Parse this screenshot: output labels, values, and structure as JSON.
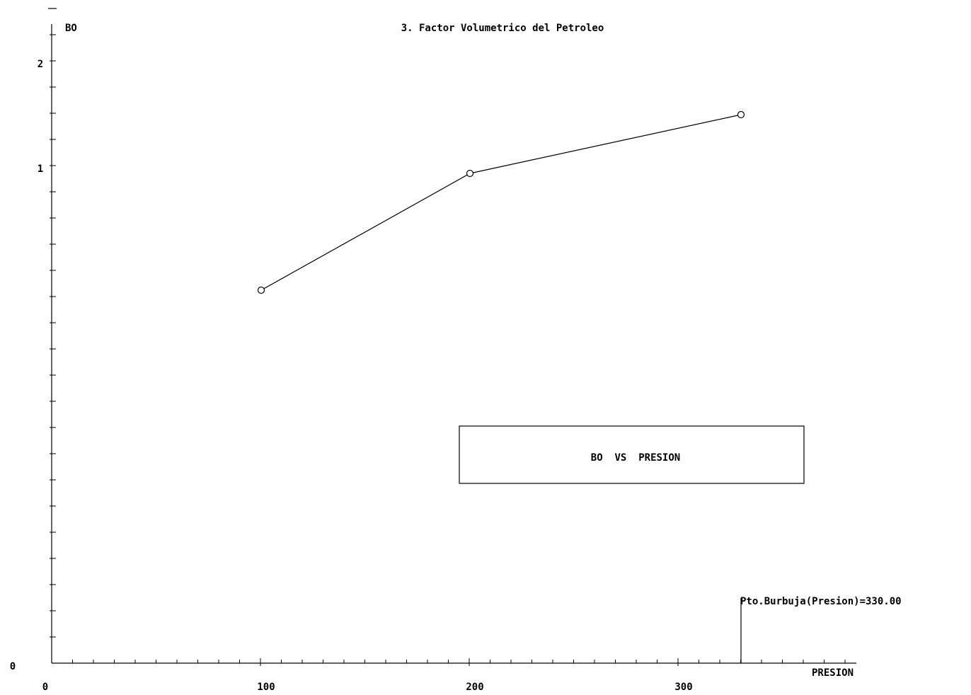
{
  "chart_data": {
    "type": "line",
    "title": "3. Factor Volumetrico del Petroleo",
    "xlabel": "PRESION",
    "ylabel": "BO",
    "xlim": [
      0,
      385
    ],
    "ylim": [
      0,
      2.3
    ],
    "x_ticks": [
      {
        "value": 0,
        "label": "0"
      },
      {
        "value": 100,
        "label": "100"
      },
      {
        "value": 200,
        "label": "200"
      },
      {
        "value": 300,
        "label": "300"
      }
    ],
    "y_ticks": [
      {
        "value": 0,
        "label": "0"
      },
      {
        "value": 1,
        "label": "1"
      },
      {
        "value": 2,
        "label": "2"
      }
    ],
    "grid": false,
    "legend": {
      "text": "BO  VS  PRESION",
      "placement": "center-right"
    },
    "series": [
      {
        "x": [
          100,
          200,
          330
        ],
        "y": [
          1.36,
          1.8,
          2.03
        ]
      }
    ],
    "annotation": {
      "text": "Pto.Burbuja(Presion)=330.00",
      "x": 330
    }
  },
  "colors": {
    "line": "#000000",
    "background": "#ffffff"
  }
}
